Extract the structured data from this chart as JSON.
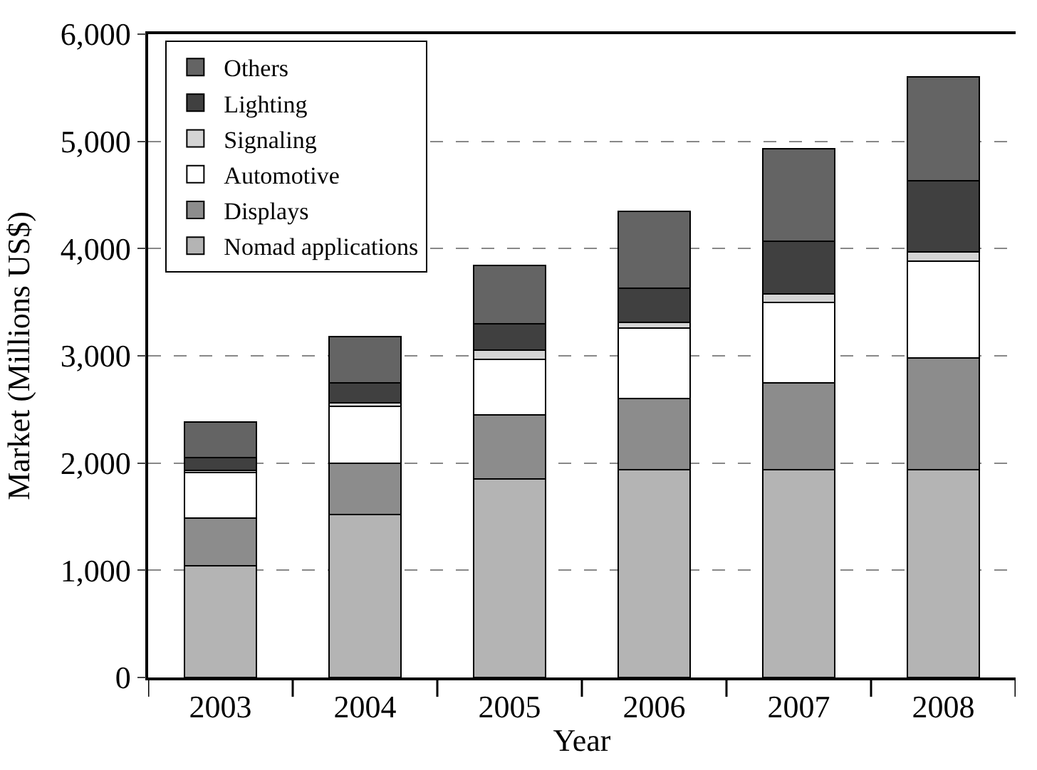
{
  "chart_data": {
    "type": "bar",
    "stacked": true,
    "xlabel": "Year",
    "ylabel": "Market (Millions US$)",
    "categories": [
      "2003",
      "2004",
      "2005",
      "2006",
      "2007",
      "2008"
    ],
    "series": [
      {
        "name": "Nomad applications",
        "color": "#b4b4b4",
        "values": [
          1040,
          1520,
          1850,
          1940,
          1940,
          1940
        ]
      },
      {
        "name": "Displays",
        "color": "#8c8c8c",
        "values": [
          450,
          480,
          600,
          660,
          810,
          1040
        ]
      },
      {
        "name": "Automotive",
        "color": "#ffffff",
        "values": [
          420,
          530,
          520,
          660,
          750,
          900
        ]
      },
      {
        "name": "Signaling",
        "color": "#d4d4d4",
        "values": [
          20,
          30,
          80,
          50,
          80,
          90
        ]
      },
      {
        "name": "Lighting",
        "color": "#404040",
        "values": [
          120,
          190,
          250,
          320,
          490,
          660
        ]
      },
      {
        "name": "Others",
        "color": "#646464",
        "values": [
          330,
          430,
          540,
          720,
          860,
          970
        ]
      }
    ],
    "ylim": [
      0,
      6000
    ],
    "yticks": [
      {
        "value": 0,
        "label": "0"
      },
      {
        "value": 1000,
        "label": "1,000"
      },
      {
        "value": 2000,
        "label": "2,000"
      },
      {
        "value": 3000,
        "label": "3,000"
      },
      {
        "value": 4000,
        "label": "4,000"
      },
      {
        "value": 5000,
        "label": "5,000"
      },
      {
        "value": 6000,
        "label": "6,000"
      }
    ],
    "grid": "y",
    "legend": "top left"
  }
}
